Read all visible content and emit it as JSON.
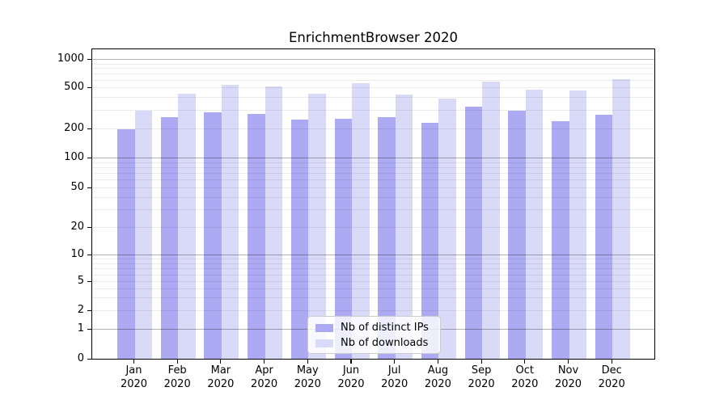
{
  "figure": {
    "title": "EnrichmentBrowser 2020"
  },
  "chart_data": {
    "type": "bar",
    "title": "EnrichmentBrowser 2020",
    "categories": [
      "Jan 2020",
      "Feb 2020",
      "Mar 2020",
      "Apr 2020",
      "May 2020",
      "Jun 2020",
      "Jul 2020",
      "Aug 2020",
      "Sep 2020",
      "Oct 2020",
      "Nov 2020",
      "Dec 2020"
    ],
    "x_months": [
      "Jan",
      "Feb",
      "Mar",
      "Apr",
      "May",
      "Jun",
      "Jul",
      "Aug",
      "Sep",
      "Oct",
      "Nov",
      "Dec"
    ],
    "x_year": "2020",
    "series": [
      {
        "name": "Nb of distinct IPs",
        "color": "#abaaf2",
        "values": [
          197,
          258,
          288,
          275,
          245,
          248,
          255,
          228,
          325,
          298,
          237,
          272
        ]
      },
      {
        "name": "Nb of downloads",
        "color": "#d9d9f8",
        "values": [
          297,
          434,
          523,
          505,
          433,
          545,
          425,
          385,
          578,
          474,
          464,
          605
        ]
      }
    ],
    "xlabel": "",
    "ylabel": "",
    "yscale": "symlog",
    "ylim": [
      0,
      1000
    ],
    "yticks": [
      0,
      1,
      2,
      5,
      10,
      20,
      50,
      100,
      200,
      500,
      1000
    ],
    "minor_grid_values": [
      2,
      3,
      4,
      5,
      6,
      7,
      8,
      9,
      20,
      30,
      40,
      50,
      60,
      70,
      80,
      90,
      200,
      300,
      400,
      500,
      600,
      700,
      800,
      900
    ],
    "major_grid_values": [
      1,
      10,
      100,
      1000
    ],
    "grid": "horizontal, major+minor, drawn over bars",
    "legend": {
      "position": "lower center",
      "entries": [
        "Nb of distinct IPs",
        "Nb of downloads"
      ]
    }
  }
}
